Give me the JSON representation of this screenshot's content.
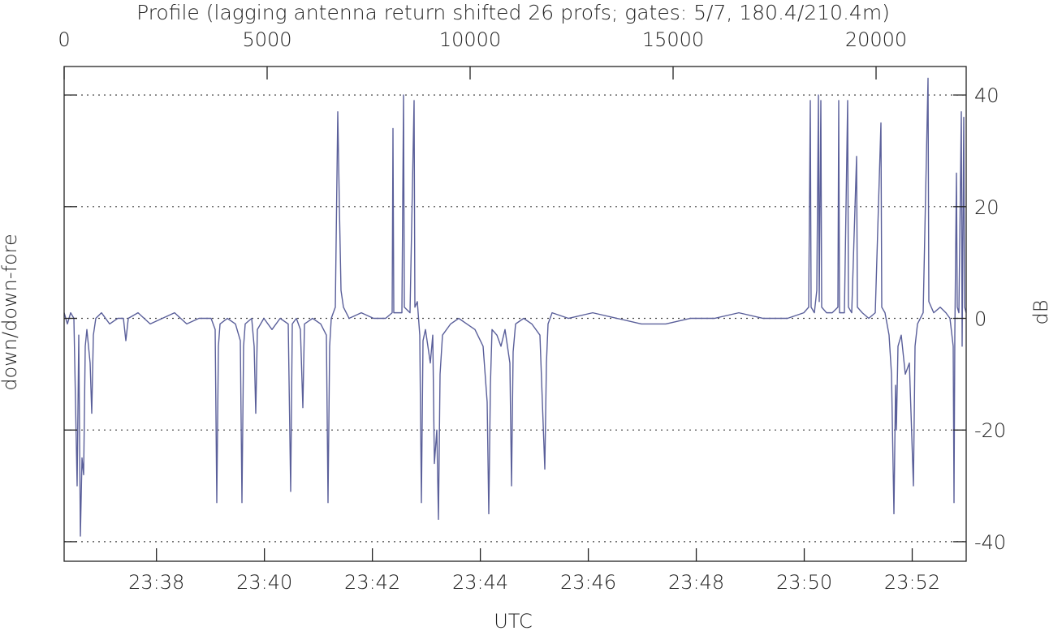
{
  "chart_data": {
    "type": "line",
    "title": "Profile (lagging antenna return shifted 26 profs; gates: 5/7, 180.4/210.4m)",
    "y_label": "down/down-fore",
    "y2_label": "dB",
    "x2_label": "UTC",
    "color": "#5a5f9a",
    "grid": true,
    "xlim": [
      0,
      22220
    ],
    "xticks": [
      0,
      5000,
      10000,
      15000,
      20000
    ],
    "x2lim": [
      1416.29,
      1433
    ],
    "x2ticks": [
      {
        "value": 1418,
        "label": "23:38"
      },
      {
        "value": 1420,
        "label": "23:40"
      },
      {
        "value": 1422,
        "label": "23:42"
      },
      {
        "value": 1424,
        "label": "23:44"
      },
      {
        "value": 1426,
        "label": "23:46"
      },
      {
        "value": 1428,
        "label": "23:48"
      },
      {
        "value": 1430,
        "label": "23:50"
      },
      {
        "value": 1432,
        "label": "23:52"
      }
    ],
    "ylim": [
      -43.5,
      45.1
    ],
    "yticks": [
      -40,
      -20,
      0,
      20,
      40
    ],
    "x": [
      0,
      80,
      160,
      240,
      320,
      360,
      400,
      440,
      480,
      520,
      560,
      640,
      680,
      720,
      780,
      920,
      1120,
      1320,
      1460,
      1520,
      1580,
      1820,
      2120,
      2420,
      2720,
      3020,
      3320,
      3620,
      3720,
      3760,
      3800,
      3840,
      4020,
      4220,
      4340,
      4380,
      4420,
      4460,
      4620,
      4680,
      4720,
      4760,
      4920,
      5120,
      5320,
      5520,
      5580,
      5620,
      5720,
      5820,
      5880,
      5920,
      6120,
      6320,
      6460,
      6500,
      6540,
      6580,
      6680,
      6740,
      6780,
      6820,
      6880,
      7020,
      7320,
      7620,
      7920,
      8080,
      8100,
      8120,
      8320,
      8360,
      8380,
      8520,
      8620,
      8640,
      8700,
      8760,
      8800,
      8840,
      8900,
      9020,
      9080,
      9120,
      9180,
      9220,
      9260,
      9320,
      9520,
      9720,
      9920,
      10120,
      10320,
      10420,
      10460,
      10500,
      10540,
      10660,
      10760,
      10860,
      10980,
      11020,
      11060,
      11120,
      11320,
      11520,
      11720,
      11840,
      11880,
      11920,
      12020,
      12420,
      13020,
      13620,
      14220,
      14820,
      15420,
      16020,
      16620,
      17220,
      17820,
      18220,
      18340,
      18380,
      18400,
      18480,
      18540,
      18580,
      18600,
      18640,
      18660,
      18780,
      18920,
      19060,
      19080,
      19100,
      19220,
      19300,
      19320,
      19400,
      19520,
      19540,
      19660,
      19820,
      19980,
      20120,
      20140,
      20220,
      20320,
      20380,
      20440,
      20480,
      20500,
      20540,
      20620,
      20720,
      20820,
      20920,
      20960,
      21020,
      21160,
      21280,
      21300,
      21420,
      21580,
      21720,
      21820,
      21900,
      21920,
      21940,
      21980,
      22000,
      22040,
      22100,
      22120,
      22160,
      22180,
      22220
    ],
    "values": [
      1,
      -1,
      1,
      0,
      -30,
      -3,
      -39,
      -25,
      -28,
      -5,
      -2,
      -8,
      -17,
      -3,
      0,
      1,
      -1,
      0,
      0,
      -4,
      0,
      1,
      -1,
      0,
      1,
      -1,
      0,
      0,
      -2,
      -33,
      -5,
      -1,
      0,
      -1,
      -4,
      -33,
      -5,
      -1,
      0,
      -5,
      -17,
      -2,
      0,
      -2,
      0,
      -1,
      -31,
      -1,
      0,
      -2,
      -16,
      -1,
      0,
      -1,
      -3,
      -33,
      -5,
      0,
      2,
      37,
      20,
      5,
      2,
      0,
      1,
      0,
      0,
      1,
      34,
      1,
      1,
      40,
      2,
      1,
      39,
      2,
      3,
      -3,
      -33,
      -4,
      -2,
      -8,
      -3,
      -26,
      -20,
      -36,
      -10,
      -3,
      -1,
      0,
      -1,
      -2,
      -5,
      -15,
      -35,
      -12,
      -2,
      -3,
      -5,
      -2,
      -8,
      -30,
      -6,
      -1,
      0,
      -1,
      -3,
      -27,
      -8,
      -1,
      1,
      0,
      1,
      0,
      -1,
      -1,
      0,
      0,
      1,
      0,
      0,
      1,
      2,
      39,
      2,
      1,
      5,
      40,
      3,
      39,
      2,
      1,
      1,
      2,
      39,
      1,
      1,
      39,
      2,
      1,
      29,
      2,
      1,
      0,
      1,
      35,
      2,
      1,
      -3,
      -10,
      -35,
      -12,
      -20,
      -5,
      -3,
      -10,
      -8,
      -30,
      -5,
      -1,
      1,
      43,
      3,
      1,
      2,
      1,
      0,
      -5,
      -33,
      -3,
      26,
      2,
      1,
      37,
      -5,
      36,
      2,
      1
    ]
  }
}
